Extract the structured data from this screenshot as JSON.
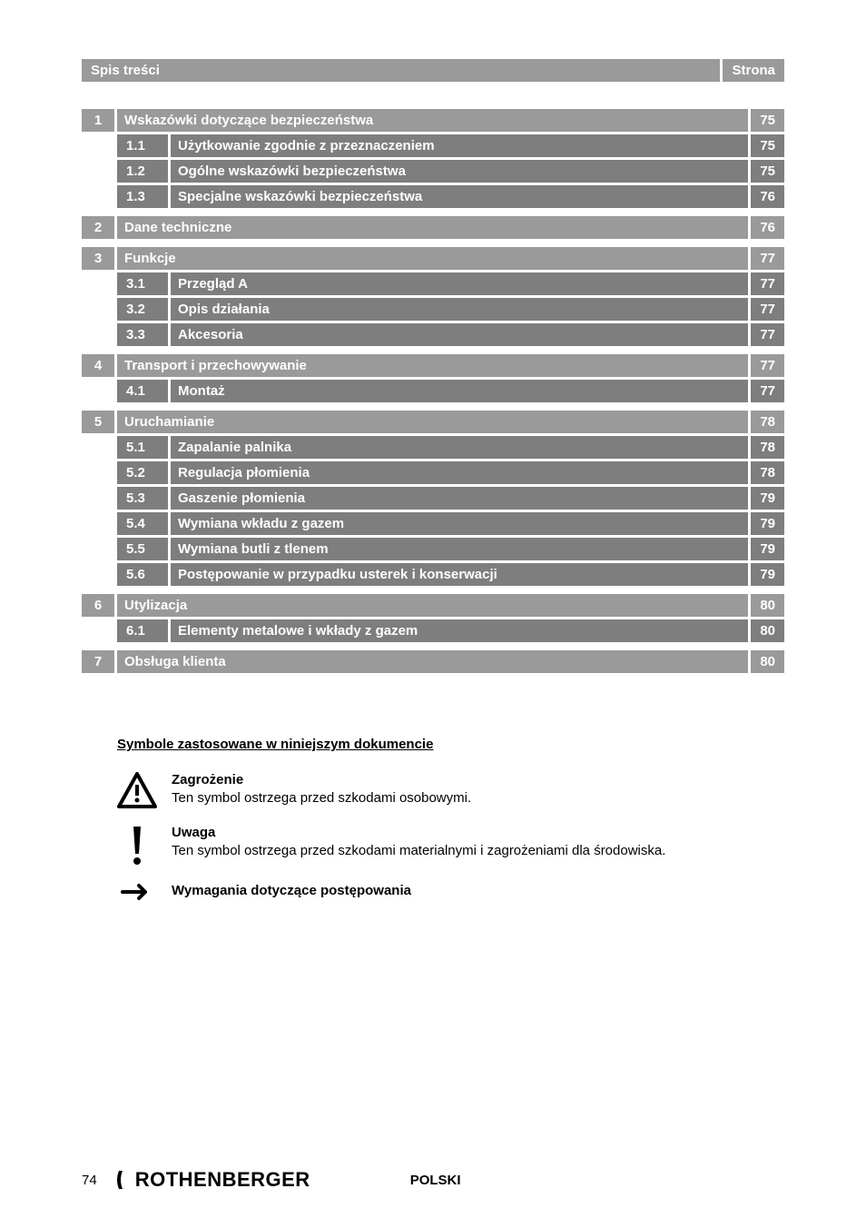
{
  "header": {
    "left": "Spis treści",
    "right": "Strona"
  },
  "toc": [
    {
      "type": "main",
      "num": "1",
      "title": "Wskazówki dotyczące bezpieczeństwa",
      "page": "75"
    },
    {
      "type": "sub",
      "num": "1.1",
      "title": "Użytkowanie zgodnie z przeznaczeniem",
      "page": "75"
    },
    {
      "type": "sub",
      "num": "1.2",
      "title": "Ogólne wskazówki bezpieczeństwa",
      "page": "75"
    },
    {
      "type": "sub",
      "num": "1.3",
      "title": "Specjalne wskazówki bezpieczeństwa",
      "page": "76"
    },
    {
      "type": "main",
      "num": "2",
      "title": "Dane techniczne",
      "page": "76"
    },
    {
      "type": "main",
      "num": "3",
      "title": "Funkcje",
      "page": "77"
    },
    {
      "type": "sub",
      "num": "3.1",
      "title": "Przegląd A",
      "page": "77"
    },
    {
      "type": "sub",
      "num": "3.2",
      "title": "Opis działania",
      "page": "77"
    },
    {
      "type": "sub",
      "num": "3.3",
      "title": "Akcesoria",
      "page": "77"
    },
    {
      "type": "main",
      "num": "4",
      "title": "Transport i przechowywanie",
      "page": "77"
    },
    {
      "type": "sub",
      "num": "4.1",
      "title": "Montaż",
      "page": "77"
    },
    {
      "type": "main",
      "num": "5",
      "title": "Uruchamianie",
      "page": "78"
    },
    {
      "type": "sub",
      "num": "5.1",
      "title": "Zapalanie palnika",
      "page": "78"
    },
    {
      "type": "sub",
      "num": "5.2",
      "title": "Regulacja płomienia",
      "page": "78"
    },
    {
      "type": "sub",
      "num": "5.3",
      "title": "Gaszenie płomienia",
      "page": "79"
    },
    {
      "type": "sub",
      "num": "5.4",
      "title": "Wymiana wkładu z gazem",
      "page": "79"
    },
    {
      "type": "sub",
      "num": "5.5",
      "title": "Wymiana butli z tlenem",
      "page": "79"
    },
    {
      "type": "sub",
      "num": "5.6",
      "title": "Postępowanie w przypadku usterek i konserwacji",
      "page": "79"
    },
    {
      "type": "main",
      "num": "6",
      "title": "Utylizacja",
      "page": "80"
    },
    {
      "type": "sub",
      "num": "6.1",
      "title": "Elementy metalowe i wkłady z gazem",
      "page": "80"
    },
    {
      "type": "main",
      "num": "7",
      "title": "Obsługa klienta",
      "page": "80"
    }
  ],
  "symbols": {
    "heading": "Symbole zastosowane w niniejszym dokumencie",
    "items": [
      {
        "icon": "warning-triangle",
        "title": "Zagrożenie",
        "desc": "Ten symbol ostrzega przed szkodami osobowymi."
      },
      {
        "icon": "exclamation",
        "title": "Uwaga",
        "desc": "Ten symbol ostrzega przed szkodami materialnymi i zagrożeniami dla środowiska."
      },
      {
        "icon": "arrow-right",
        "title": "Wymagania dotyczące postępowania",
        "desc": ""
      }
    ]
  },
  "footer": {
    "page": "74",
    "logo": "ROTHENBERGER",
    "lang": "POLSKI"
  },
  "colors": {
    "main_bg": "#9a9a9a",
    "sub_bg": "#7e7e7e",
    "text_on_bg": "#ffffff"
  }
}
